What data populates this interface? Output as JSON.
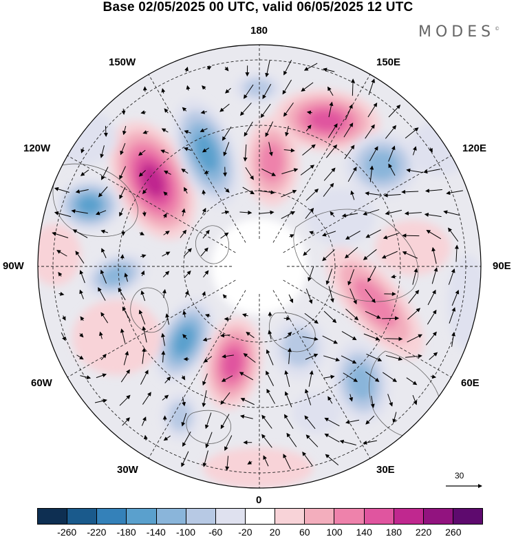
{
  "title": "Base 02/05/2025 00 UTC, valid 06/05/2025 12 UTC",
  "brand": "MODES",
  "brand_mark": "©",
  "longitude_labels": {
    "top": "180",
    "bottom": "0",
    "left": "90W",
    "right": "90E",
    "upper_left_1": "150W",
    "upper_left_2": "120W",
    "lower_left_1": "60W",
    "lower_left_2": "30W",
    "upper_right_1": "150E",
    "upper_right_2": "120E",
    "lower_right_1": "60E",
    "lower_right_2": "30E"
  },
  "reference_vector": {
    "label": "30",
    "icon": "right-arrow-icon"
  },
  "colorbar": {
    "colors": [
      "#0e2f52",
      "#1a5a8c",
      "#3481b9",
      "#5aa0cd",
      "#8ab5da",
      "#b7c9e4",
      "#dfe1ef",
      "#ffffff",
      "#f8d3d8",
      "#f3aebd",
      "#ee82ab",
      "#e0559f",
      "#c0288f",
      "#92137f",
      "#5e0a6e"
    ],
    "tick_labels": [
      "-260",
      "-220",
      "-180",
      "-140",
      "-100",
      "-60",
      "-20",
      "20",
      "60",
      "100",
      "140",
      "180",
      "220",
      "260"
    ]
  },
  "map_features": {
    "projection": "north polar stereographic",
    "fill": "geopotential height anomaly (shaded)",
    "vectors": "wind arrows"
  }
}
